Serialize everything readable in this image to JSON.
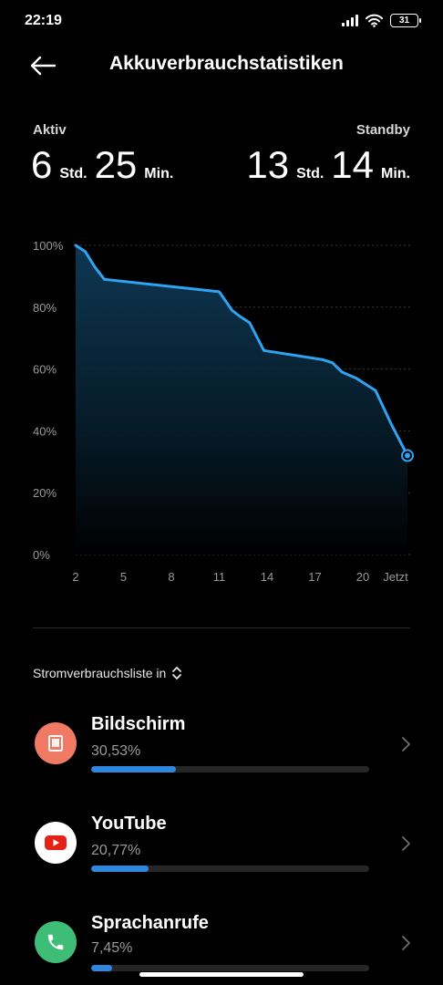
{
  "status_bar": {
    "time": "22:19",
    "battery_level": "31",
    "icons": [
      "signal-icon",
      "wifi-icon",
      "battery-icon"
    ]
  },
  "header": {
    "back_icon": "arrow-left-icon",
    "title": "Akkuverbrauchstatistiken"
  },
  "summary": {
    "active_label": "Aktiv",
    "active_hours": "6",
    "active_hours_unit": "Std.",
    "active_minutes": "25",
    "active_minutes_unit": "Min.",
    "standby_label": "Standby",
    "standby_hours": "13",
    "standby_hours_unit": "Std.",
    "standby_minutes": "14",
    "standby_minutes_unit": "Min."
  },
  "chart_data": {
    "type": "area",
    "x_ticks": [
      "2",
      "5",
      "8",
      "11",
      "14",
      "17",
      "20",
      "Jetzt"
    ],
    "y_ticks": [
      "100%",
      "80%",
      "60%",
      "40%",
      "20%",
      "0%"
    ],
    "y_range": [
      0,
      100
    ],
    "x_range": [
      2,
      22.8
    ],
    "grid": true,
    "line_color": "#2ea3f2",
    "points": [
      {
        "x": 2,
        "y": 100
      },
      {
        "x": 2.6,
        "y": 98
      },
      {
        "x": 3.2,
        "y": 93
      },
      {
        "x": 3.8,
        "y": 89
      },
      {
        "x": 11,
        "y": 85
      },
      {
        "x": 11.8,
        "y": 79
      },
      {
        "x": 12.3,
        "y": 77
      },
      {
        "x": 12.9,
        "y": 75
      },
      {
        "x": 13.8,
        "y": 66
      },
      {
        "x": 17.5,
        "y": 63
      },
      {
        "x": 18.1,
        "y": 62
      },
      {
        "x": 18.7,
        "y": 59
      },
      {
        "x": 19.6,
        "y": 57
      },
      {
        "x": 20.2,
        "y": 55
      },
      {
        "x": 20.8,
        "y": 53
      },
      {
        "x": 21.8,
        "y": 42
      },
      {
        "x": 22.8,
        "y": 32
      }
    ]
  },
  "list": {
    "header": "Stromverbrauchsliste in",
    "header_icon": "sort-toggle-icon",
    "items": [
      {
        "name": "Bildschirm",
        "percent": "30,53%",
        "value": 0.3053,
        "icon": "screen-icon",
        "icon_bg": "#f07a63",
        "chevron_icon": "chevron-right-icon"
      },
      {
        "name": "YouTube",
        "percent": "20,77%",
        "value": 0.2077,
        "icon": "youtube-icon",
        "icon_bg": "#ffffff",
        "chevron_icon": "chevron-right-icon"
      },
      {
        "name": "Sprachanrufe",
        "percent": "7,45%",
        "value": 0.0745,
        "icon": "phone-icon",
        "icon_bg": "#3dbd75",
        "chevron_icon": "chevron-right-icon"
      }
    ]
  },
  "colors": {
    "background": "#000000",
    "accent": "#2e86de",
    "chart_line": "#2ea3f2"
  }
}
